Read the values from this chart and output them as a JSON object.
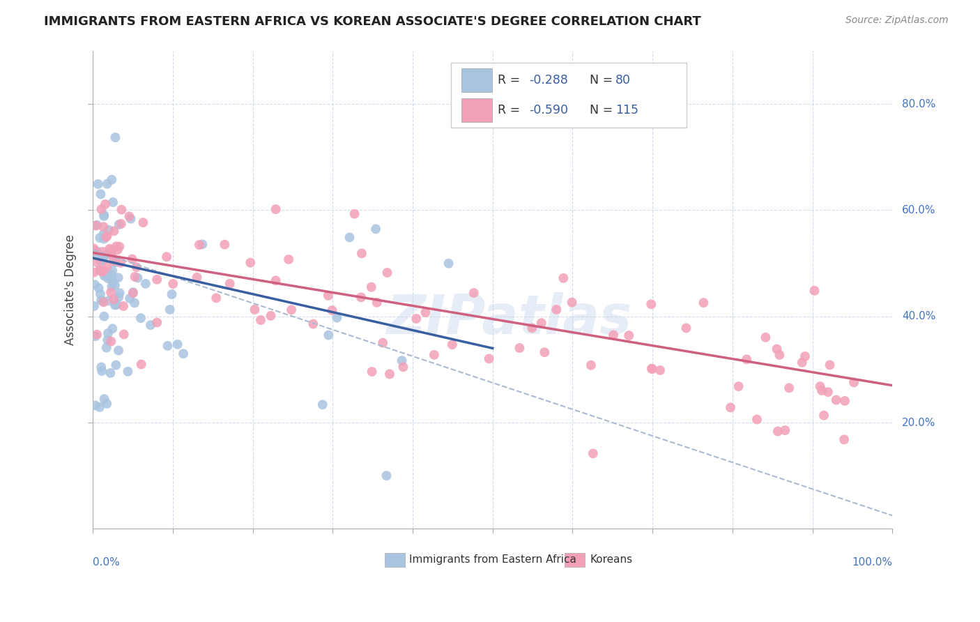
{
  "title": "IMMIGRANTS FROM EASTERN AFRICA VS KOREAN ASSOCIATE'S DEGREE CORRELATION CHART",
  "source": "Source: ZipAtlas.com",
  "ylabel": "Associate's Degree",
  "blue_color": "#a8c4e0",
  "pink_color": "#f2a0b8",
  "blue_line_color": "#3a5fa0",
  "pink_line_color": "#d06080",
  "dashed_line_color": "#aabbd0",
  "watermark": "ZIPatlas",
  "y_tick_positions": [
    0.2,
    0.4,
    0.6,
    0.8
  ],
  "y_tick_labels": [
    "20.0%",
    "40.0%",
    "60.0%",
    "80.0%"
  ],
  "xlim": [
    0.0,
    1.0
  ],
  "ylim": [
    0.0,
    0.9
  ],
  "blue_line_x": [
    0.0,
    0.5
  ],
  "blue_line_y": [
    0.51,
    0.34
  ],
  "pink_line_x": [
    0.0,
    1.0
  ],
  "pink_line_y": [
    0.52,
    0.27
  ],
  "dashed_line_x": [
    0.0,
    1.0
  ],
  "dashed_line_y": [
    0.525,
    0.025
  ],
  "seed": 123,
  "n_blue": 80,
  "n_pink": 115
}
